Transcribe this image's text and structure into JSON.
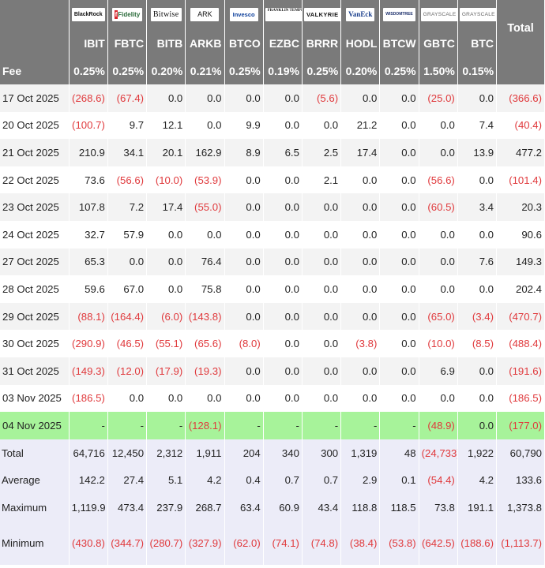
{
  "table": {
    "total_label": "Total",
    "fee_label": "Fee",
    "logos": [
      {
        "id": "blackrock",
        "text": "BlackRock"
      },
      {
        "id": "fidelity",
        "text": "Fidelity"
      },
      {
        "id": "bitwise",
        "text": "Bitwise"
      },
      {
        "id": "ark",
        "text": "ARK"
      },
      {
        "id": "invesco",
        "text": "Invesco"
      },
      {
        "id": "franklin",
        "text": "FRANKLIN TEMPLETON"
      },
      {
        "id": "valkyrie",
        "text": "VALKYRIE"
      },
      {
        "id": "vaneck",
        "text": "VanEck"
      },
      {
        "id": "wisdomtree",
        "text": "WISDOMTREE"
      },
      {
        "id": "grayscale1",
        "text": "GRAYSCALE"
      },
      {
        "id": "grayscale2",
        "text": "GRAYSCALE"
      }
    ],
    "tickers": [
      "IBIT",
      "FBTC",
      "BITB",
      "ARKB",
      "BTCO",
      "EZBC",
      "BRRR",
      "HODL",
      "BTCW",
      "GBTC",
      "BTC"
    ],
    "fees": [
      "0.25%",
      "0.25%",
      "0.20%",
      "0.21%",
      "0.25%",
      "0.19%",
      "0.25%",
      "0.20%",
      "0.25%",
      "1.50%",
      "0.15%"
    ],
    "rows": [
      {
        "date": "17 Oct 2025",
        "values": [
          "(268.6)",
          "(67.4)",
          "0.0",
          "0.0",
          "0.0",
          "0.0",
          "(5.6)",
          "0.0",
          "0.0",
          "(25.0)",
          "0.0"
        ],
        "total": "(366.6)"
      },
      {
        "date": "20 Oct 2025",
        "values": [
          "(100.7)",
          "9.7",
          "12.1",
          "0.0",
          "9.9",
          "0.0",
          "0.0",
          "21.2",
          "0.0",
          "0.0",
          "7.4"
        ],
        "total": "(40.4)"
      },
      {
        "date": "21 Oct 2025",
        "values": [
          "210.9",
          "34.1",
          "20.1",
          "162.9",
          "8.9",
          "6.5",
          "2.5",
          "17.4",
          "0.0",
          "0.0",
          "13.9"
        ],
        "total": "477.2"
      },
      {
        "date": "22 Oct 2025",
        "values": [
          "73.6",
          "(56.6)",
          "(10.0)",
          "(53.9)",
          "0.0",
          "0.0",
          "2.1",
          "0.0",
          "0.0",
          "(56.6)",
          "0.0"
        ],
        "total": "(101.4)"
      },
      {
        "date": "23 Oct 2025",
        "values": [
          "107.8",
          "7.2",
          "17.4",
          "(55.0)",
          "0.0",
          "0.0",
          "0.0",
          "0.0",
          "0.0",
          "(60.5)",
          "3.4"
        ],
        "total": "20.3"
      },
      {
        "date": "24 Oct 2025",
        "values": [
          "32.7",
          "57.9",
          "0.0",
          "0.0",
          "0.0",
          "0.0",
          "0.0",
          "0.0",
          "0.0",
          "0.0",
          "0.0"
        ],
        "total": "90.6"
      },
      {
        "date": "27 Oct 2025",
        "values": [
          "65.3",
          "0.0",
          "0.0",
          "76.4",
          "0.0",
          "0.0",
          "0.0",
          "0.0",
          "0.0",
          "0.0",
          "7.6"
        ],
        "total": "149.3"
      },
      {
        "date": "28 Oct 2025",
        "values": [
          "59.6",
          "67.0",
          "0.0",
          "75.8",
          "0.0",
          "0.0",
          "0.0",
          "0.0",
          "0.0",
          "0.0",
          "0.0"
        ],
        "total": "202.4"
      },
      {
        "date": "29 Oct 2025",
        "values": [
          "(88.1)",
          "(164.4)",
          "(6.0)",
          "(143.8)",
          "0.0",
          "0.0",
          "0.0",
          "0.0",
          "0.0",
          "(65.0)",
          "(3.4)"
        ],
        "total": "(470.7)"
      },
      {
        "date": "30 Oct 2025",
        "values": [
          "(290.9)",
          "(46.5)",
          "(55.1)",
          "(65.6)",
          "(8.0)",
          "0.0",
          "0.0",
          "(3.8)",
          "0.0",
          "(10.0)",
          "(8.5)"
        ],
        "total": "(488.4)"
      },
      {
        "date": "31 Oct 2025",
        "values": [
          "(149.3)",
          "(12.0)",
          "(17.9)",
          "(19.3)",
          "0.0",
          "0.0",
          "0.0",
          "0.0",
          "0.0",
          "6.9",
          "0.0"
        ],
        "total": "(191.6)"
      },
      {
        "date": "03 Nov 2025",
        "values": [
          "(186.5)",
          "0.0",
          "0.0",
          "0.0",
          "0.0",
          "0.0",
          "0.0",
          "0.0",
          "0.0",
          "0.0",
          "0.0"
        ],
        "total": "(186.5)"
      },
      {
        "date": "04 Nov 2025",
        "values": [
          "-",
          "-",
          "-",
          "(128.1)",
          "-",
          "-",
          "-",
          "-",
          "-",
          "(48.9)",
          "0.0"
        ],
        "total": "(177.0)",
        "highlight": true
      }
    ],
    "summary": [
      {
        "label": "Total",
        "values": [
          "64,716",
          "12,450",
          "2,312",
          "1,911",
          "204",
          "340",
          "300",
          "1,319",
          "48",
          "(24,733)",
          "1,922"
        ],
        "total": "60,790"
      },
      {
        "label": "Average",
        "values": [
          "142.2",
          "27.4",
          "5.1",
          "4.2",
          "0.4",
          "0.7",
          "0.7",
          "2.9",
          "0.1",
          "(54.4)",
          "4.2"
        ],
        "total": "133.6"
      },
      {
        "label": "Maximum",
        "values": [
          "1,119.9",
          "473.4",
          "237.9",
          "268.7",
          "63.4",
          "60.9",
          "43.4",
          "118.8",
          "118.5",
          "73.8",
          "191.1"
        ],
        "total": "1,373.8"
      },
      {
        "label": "Minimum",
        "values": [
          "(430.8)",
          "(344.7)",
          "(280.7)",
          "(327.9)",
          "(62.0)",
          "(74.1)",
          "(74.8)",
          "(38.4)",
          "(53.8)",
          "(642.5)",
          "(188.6)"
        ],
        "total": "(1,113.7)"
      }
    ]
  },
  "colors": {
    "header_bg": "#7a7a7a",
    "negative": "#e0393c",
    "highlight_row": "#a7f39a",
    "summary_bg": "#ececf8",
    "alt_row": "#f3f3f3"
  },
  "chart_data": {
    "type": "table",
    "columns": [
      "IBIT",
      "FBTC",
      "BITB",
      "ARKB",
      "BTCO",
      "EZBC",
      "BRRR",
      "HODL",
      "BTCW",
      "GBTC",
      "BTC",
      "Total"
    ],
    "fees": [
      "0.25%",
      "0.25%",
      "0.20%",
      "0.21%",
      "0.25%",
      "0.19%",
      "0.25%",
      "0.20%",
      "0.25%",
      "1.50%",
      "0.15%"
    ],
    "rows": [
      {
        "date": "17 Oct 2025",
        "values": [
          -268.6,
          -67.4,
          0.0,
          0.0,
          0.0,
          0.0,
          -5.6,
          0.0,
          0.0,
          -25.0,
          0.0,
          -366.6
        ]
      },
      {
        "date": "20 Oct 2025",
        "values": [
          -100.7,
          9.7,
          12.1,
          0.0,
          9.9,
          0.0,
          0.0,
          21.2,
          0.0,
          0.0,
          7.4,
          -40.4
        ]
      },
      {
        "date": "21 Oct 2025",
        "values": [
          210.9,
          34.1,
          20.1,
          162.9,
          8.9,
          6.5,
          2.5,
          17.4,
          0.0,
          0.0,
          13.9,
          477.2
        ]
      },
      {
        "date": "22 Oct 2025",
        "values": [
          73.6,
          -56.6,
          -10.0,
          -53.9,
          0.0,
          0.0,
          2.1,
          0.0,
          0.0,
          -56.6,
          0.0,
          -101.4
        ]
      },
      {
        "date": "23 Oct 2025",
        "values": [
          107.8,
          7.2,
          17.4,
          -55.0,
          0.0,
          0.0,
          0.0,
          0.0,
          0.0,
          -60.5,
          3.4,
          20.3
        ]
      },
      {
        "date": "24 Oct 2025",
        "values": [
          32.7,
          57.9,
          0.0,
          0.0,
          0.0,
          0.0,
          0.0,
          0.0,
          0.0,
          0.0,
          0.0,
          90.6
        ]
      },
      {
        "date": "27 Oct 2025",
        "values": [
          65.3,
          0.0,
          0.0,
          76.4,
          0.0,
          0.0,
          0.0,
          0.0,
          0.0,
          0.0,
          7.6,
          149.3
        ]
      },
      {
        "date": "28 Oct 2025",
        "values": [
          59.6,
          67.0,
          0.0,
          75.8,
          0.0,
          0.0,
          0.0,
          0.0,
          0.0,
          0.0,
          0.0,
          202.4
        ]
      },
      {
        "date": "29 Oct 2025",
        "values": [
          -88.1,
          -164.4,
          -6.0,
          -143.8,
          0.0,
          0.0,
          0.0,
          0.0,
          0.0,
          -65.0,
          -3.4,
          -470.7
        ]
      },
      {
        "date": "30 Oct 2025",
        "values": [
          -290.9,
          -46.5,
          -55.1,
          -65.6,
          -8.0,
          0.0,
          0.0,
          -3.8,
          0.0,
          -10.0,
          -8.5,
          -488.4
        ]
      },
      {
        "date": "31 Oct 2025",
        "values": [
          -149.3,
          -12.0,
          -17.9,
          -19.3,
          0.0,
          0.0,
          0.0,
          0.0,
          0.0,
          6.9,
          0.0,
          -191.6
        ]
      },
      {
        "date": "03 Nov 2025",
        "values": [
          -186.5,
          0.0,
          0.0,
          0.0,
          0.0,
          0.0,
          0.0,
          0.0,
          0.0,
          0.0,
          0.0,
          -186.5
        ]
      },
      {
        "date": "04 Nov 2025",
        "values": [
          null,
          null,
          null,
          -128.1,
          null,
          null,
          null,
          null,
          null,
          -48.9,
          0.0,
          -177.0
        ]
      }
    ],
    "summary": {
      "Total": [
        64716,
        12450,
        2312,
        1911,
        204,
        340,
        300,
        1319,
        48,
        -24733,
        1922,
        60790
      ],
      "Average": [
        142.2,
        27.4,
        5.1,
        4.2,
        0.4,
        0.7,
        0.7,
        2.9,
        0.1,
        -54.4,
        4.2,
        133.6
      ],
      "Maximum": [
        1119.9,
        473.4,
        237.9,
        268.7,
        63.4,
        60.9,
        43.4,
        118.8,
        118.5,
        73.8,
        191.1,
        1373.8
      ],
      "Minimum": [
        -430.8,
        -344.7,
        -280.7,
        -327.9,
        -62.0,
        -74.1,
        -74.8,
        -38.4,
        -53.8,
        -642.5,
        -188.6,
        -1113.7
      ]
    }
  }
}
